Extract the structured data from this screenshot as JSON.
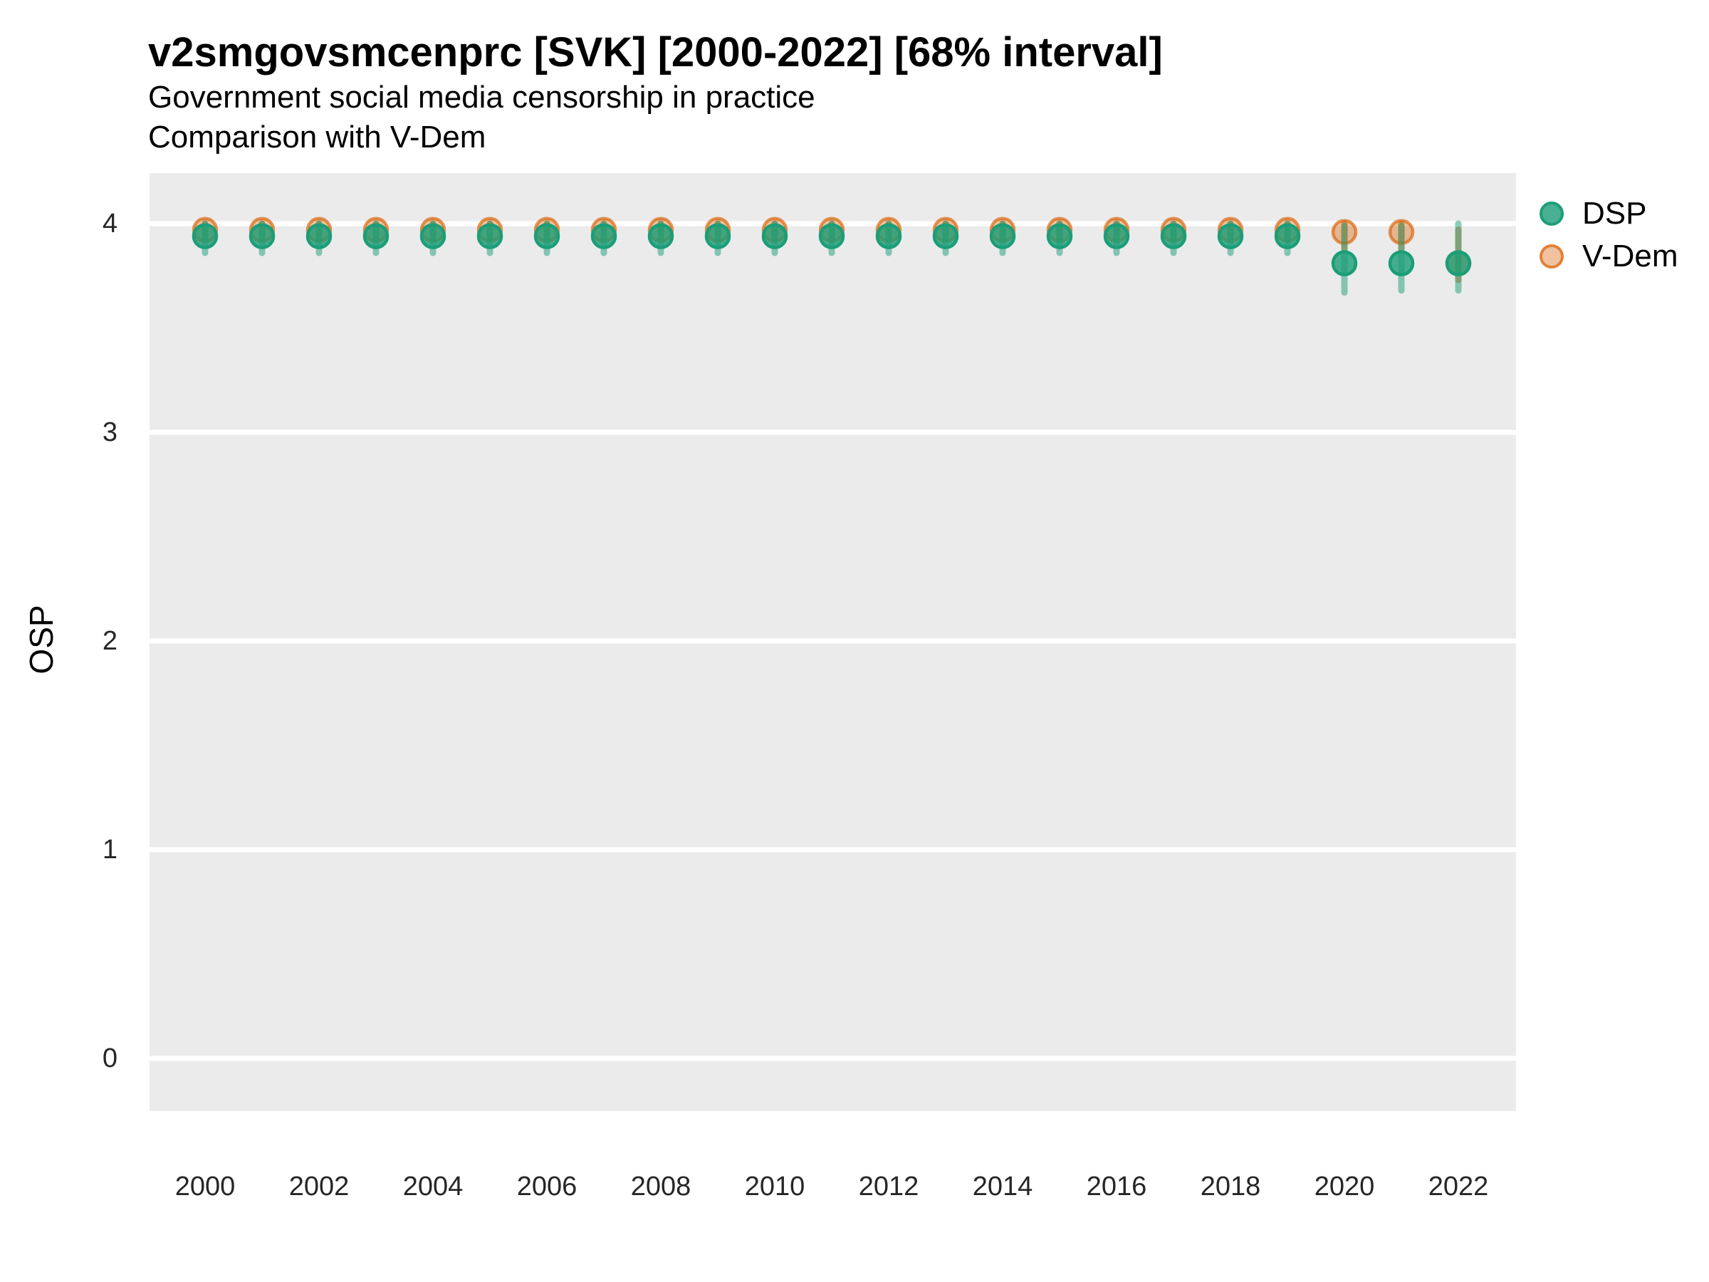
{
  "chart_data": {
    "type": "scatter",
    "title": "v2smgovsmcenprc [SVK] [2000-2022] [68% interval]",
    "subtitle1": "Government social media censorship in practice",
    "subtitle2": "Comparison with V-Dem",
    "xlabel": "",
    "ylabel": "OSP",
    "xlim": [
      1999,
      2023
    ],
    "ylim": [
      -0.25,
      4.25
    ],
    "grid": "white horizontal gridlines on gray panel",
    "legend_position": "right",
    "x_ticks": [
      2000,
      2002,
      2004,
      2006,
      2008,
      2010,
      2012,
      2014,
      2016,
      2018,
      2020,
      2022
    ],
    "y_ticks": [
      0,
      1,
      2,
      3,
      4
    ],
    "colors": {
      "dsp": "#1b9e77",
      "vdem": "#d95f02",
      "panel_bg": "#ebebeb",
      "gridline": "#ffffff"
    },
    "legend": [
      {
        "label": "DSP",
        "color": "#1b9e77"
      },
      {
        "label": "V-Dem",
        "color": "#d95f02"
      }
    ],
    "series": [
      {
        "name": "V-Dem",
        "color": "#d95f02",
        "years": [
          2000,
          2001,
          2002,
          2003,
          2004,
          2005,
          2006,
          2007,
          2008,
          2009,
          2010,
          2011,
          2012,
          2013,
          2014,
          2015,
          2016,
          2017,
          2018,
          2019,
          2020,
          2021,
          2022
        ],
        "values": [
          3.97,
          3.97,
          3.97,
          3.97,
          3.97,
          3.97,
          3.97,
          3.97,
          3.97,
          3.97,
          3.97,
          3.97,
          3.97,
          3.97,
          3.97,
          3.97,
          3.97,
          3.97,
          3.97,
          3.97,
          3.96,
          3.96,
          3.81
        ],
        "lo": [
          3.93,
          3.93,
          3.93,
          3.93,
          3.93,
          3.93,
          3.93,
          3.93,
          3.93,
          3.93,
          3.93,
          3.93,
          3.93,
          3.93,
          3.93,
          3.93,
          3.93,
          3.93,
          3.93,
          3.93,
          3.88,
          3.88,
          3.73
        ],
        "hi": [
          4.0,
          4.0,
          4.0,
          4.0,
          4.0,
          4.0,
          4.0,
          4.0,
          4.0,
          4.0,
          4.0,
          4.0,
          4.0,
          4.0,
          4.0,
          4.0,
          4.0,
          4.0,
          4.0,
          4.0,
          4.0,
          4.0,
          3.97
        ]
      },
      {
        "name": "DSP",
        "color": "#1b9e77",
        "years": [
          2000,
          2001,
          2002,
          2003,
          2004,
          2005,
          2006,
          2007,
          2008,
          2009,
          2010,
          2011,
          2012,
          2013,
          2014,
          2015,
          2016,
          2017,
          2018,
          2019,
          2020,
          2021,
          2022
        ],
        "values": [
          3.94,
          3.94,
          3.94,
          3.94,
          3.94,
          3.94,
          3.94,
          3.94,
          3.94,
          3.94,
          3.94,
          3.94,
          3.94,
          3.94,
          3.94,
          3.94,
          3.94,
          3.94,
          3.94,
          3.94,
          3.81,
          3.81,
          3.81
        ],
        "lo": [
          3.86,
          3.86,
          3.86,
          3.86,
          3.86,
          3.86,
          3.86,
          3.86,
          3.86,
          3.86,
          3.86,
          3.86,
          3.86,
          3.86,
          3.86,
          3.86,
          3.86,
          3.86,
          3.86,
          3.86,
          3.67,
          3.68,
          3.68
        ],
        "hi": [
          4.0,
          4.0,
          4.0,
          4.0,
          4.0,
          4.0,
          4.0,
          4.0,
          4.0,
          4.0,
          4.0,
          4.0,
          4.0,
          4.0,
          4.0,
          4.0,
          4.0,
          4.0,
          4.0,
          4.0,
          3.99,
          3.99,
          4.0
        ]
      }
    ]
  }
}
